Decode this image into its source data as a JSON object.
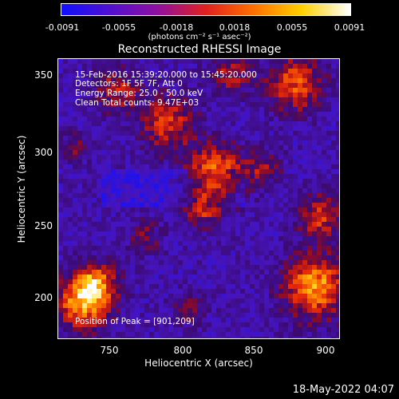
{
  "colorbar": {
    "ticks": [
      "-0.0091",
      "-0.0055",
      "-0.0018",
      "0.0018",
      "0.0055",
      "0.0091"
    ],
    "units": "(photons cm⁻² s⁻¹ asec⁻²)",
    "colors": [
      "#1010ff",
      "#5010d0",
      "#9010a0",
      "#e02020",
      "#ff7000",
      "#ffd000",
      "#ffffff"
    ]
  },
  "title": "Reconstructed RHESSI Image",
  "info": {
    "time_range": "15-Feb-2016 15:39:20.000 to 15:45:20.000",
    "detectors": "Detectors: 1F 5F 7F, Att 0",
    "energy": "Energy Range: 25.0 - 50.0 keV",
    "clean": "Clean     Total counts: 9.47E+03",
    "peak": "Position of Peak = [901,209]"
  },
  "axes": {
    "xlabel": "Heliocentric X (arcsec)",
    "ylabel": "Heliocentric Y (arcsec)",
    "xticks": [
      "750",
      "800",
      "850",
      "900"
    ],
    "yticks": [
      "350",
      "300",
      "250",
      "200"
    ],
    "xrange": [
      718,
      908
    ],
    "yrange": [
      171,
      368
    ]
  },
  "footer": {
    "date": "18-May-2022 04:07"
  }
}
